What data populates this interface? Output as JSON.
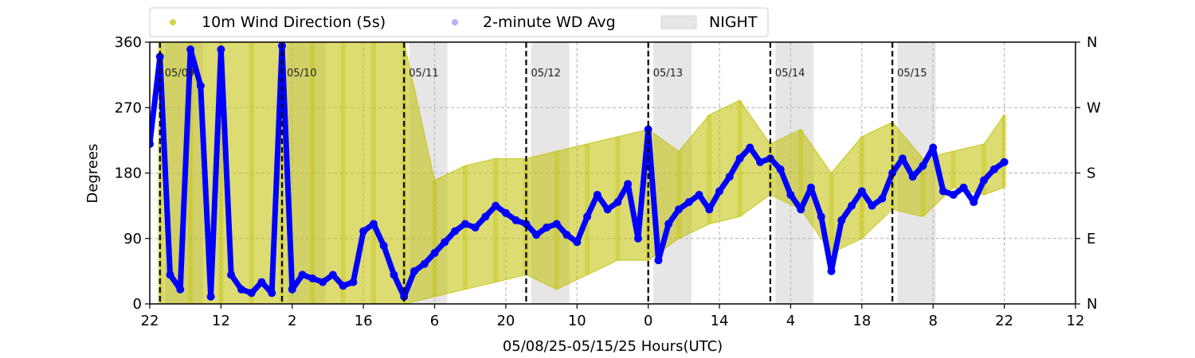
{
  "chart_data": {
    "type": "scatter",
    "xlabel": "05/08/25-05/15/25  Hours(UTC)",
    "ylabel": "Degrees",
    "ylim": [
      0,
      360
    ],
    "yticks": [
      0,
      90,
      180,
      270,
      360
    ],
    "x_axis_unit": "hours UTC",
    "x_range_start": "05/08/25 22:00",
    "x_range_end": "05/16/25 12:00",
    "xticks": [
      "22",
      "12",
      "2",
      "16",
      "6",
      "20",
      "10",
      "0",
      "14",
      "4",
      "18",
      "8",
      "22",
      "12"
    ],
    "right_axis_ticks": [
      {
        "deg": 0,
        "label": "N"
      },
      {
        "deg": 90,
        "label": "E"
      },
      {
        "deg": 180,
        "label": "S"
      },
      {
        "deg": 270,
        "label": "W"
      },
      {
        "deg": 360,
        "label": "N"
      }
    ],
    "grid": true,
    "legend_position": "top, above plot",
    "legend": [
      {
        "label": "10m Wind Direction (5s)",
        "kind": "marker",
        "color": "#bfbf00"
      },
      {
        "label": "2-minute WD Avg",
        "kind": "marker",
        "color": "#0000ff"
      },
      {
        "label": "NIGHT",
        "kind": "patch",
        "color": "#e6e6e6"
      }
    ],
    "day_boundaries": [
      {
        "time": "05/09 00:00",
        "label": "05/09"
      },
      {
        "time": "05/10 00:00",
        "label": "05/10"
      },
      {
        "time": "05/11 00:00",
        "label": "05/11"
      },
      {
        "time": "05/12 00:00",
        "label": "05/12"
      },
      {
        "time": "05/13 00:00",
        "label": "05/13"
      },
      {
        "time": "05/14 00:00",
        "label": "05/14"
      },
      {
        "time": "05/15 00:00",
        "label": "05/15"
      }
    ],
    "night_periods": [
      {
        "start": "05/09 01:00",
        "end": "05/09 08:30"
      },
      {
        "start": "05/10 01:00",
        "end": "05/10 08:30"
      },
      {
        "start": "05/11 01:00",
        "end": "05/11 08:30"
      },
      {
        "start": "05/12 01:00",
        "end": "05/12 08:30"
      },
      {
        "start": "05/13 01:00",
        "end": "05/13 08:30"
      },
      {
        "start": "05/14 01:00",
        "end": "05/14 08:30"
      },
      {
        "start": "05/15 01:00",
        "end": "05/15 08:30"
      }
    ],
    "series": [
      {
        "name": "2-minute WD Avg",
        "color": "#0000ff",
        "x": [
          "05/08 22:00",
          "05/09 00:00",
          "05/09 02:00",
          "05/09 04:00",
          "05/09 06:00",
          "05/09 08:00",
          "05/09 10:00",
          "05/09 12:00",
          "05/09 14:00",
          "05/09 16:00",
          "05/09 18:00",
          "05/09 20:00",
          "05/09 22:00",
          "05/10 00:00",
          "05/10 02:00",
          "05/10 04:00",
          "05/10 06:00",
          "05/10 08:00",
          "05/10 10:00",
          "05/10 12:00",
          "05/10 14:00",
          "05/10 16:00",
          "05/10 18:00",
          "05/10 20:00",
          "05/10 22:00",
          "05/11 00:00",
          "05/11 02:00",
          "05/11 04:00",
          "05/11 06:00",
          "05/11 08:00",
          "05/11 10:00",
          "05/11 12:00",
          "05/11 14:00",
          "05/11 16:00",
          "05/11 18:00",
          "05/11 20:00",
          "05/11 22:00",
          "05/12 00:00",
          "05/12 02:00",
          "05/12 04:00",
          "05/12 06:00",
          "05/12 08:00",
          "05/12 10:00",
          "05/12 12:00",
          "05/12 14:00",
          "05/12 16:00",
          "05/12 18:00",
          "05/12 20:00",
          "05/12 22:00",
          "05/13 00:00",
          "05/13 02:00",
          "05/13 04:00",
          "05/13 06:00",
          "05/13 08:00",
          "05/13 10:00",
          "05/13 12:00",
          "05/13 14:00",
          "05/13 16:00",
          "05/13 18:00",
          "05/13 20:00",
          "05/13 22:00",
          "05/14 00:00",
          "05/14 02:00",
          "05/14 04:00",
          "05/14 06:00",
          "05/14 08:00",
          "05/14 10:00",
          "05/14 12:00",
          "05/14 14:00",
          "05/14 16:00",
          "05/14 18:00",
          "05/14 20:00",
          "05/14 22:00",
          "05/15 00:00",
          "05/15 02:00",
          "05/15 04:00",
          "05/15 06:00",
          "05/15 08:00",
          "05/15 10:00",
          "05/15 12:00",
          "05/15 14:00",
          "05/15 16:00",
          "05/15 18:00",
          "05/15 20:00",
          "05/15 22:00"
        ],
        "y": [
          220,
          340,
          40,
          20,
          350,
          300,
          10,
          350,
          40,
          20,
          15,
          30,
          15,
          355,
          20,
          40,
          35,
          30,
          40,
          25,
          30,
          100,
          110,
          80,
          40,
          10,
          45,
          55,
          70,
          85,
          100,
          110,
          105,
          120,
          135,
          125,
          115,
          110,
          95,
          105,
          110,
          95,
          85,
          120,
          150,
          130,
          140,
          165,
          90,
          240,
          60,
          110,
          130,
          140,
          150,
          130,
          155,
          175,
          200,
          215,
          195,
          200,
          185,
          150,
          130,
          160,
          120,
          45,
          115,
          135,
          155,
          135,
          145,
          180,
          200,
          175,
          190,
          215,
          155,
          150,
          160,
          140,
          170,
          185,
          195
        ]
      },
      {
        "name": "10m Wind Direction (5s)",
        "color": "#bfbf00",
        "x": [
          "05/09 00:00",
          "05/09 06:00",
          "05/09 12:00",
          "05/09 18:00",
          "05/10 00:00",
          "05/10 06:00",
          "05/10 12:00",
          "05/10 18:00",
          "05/11 00:00",
          "05/11 06:00",
          "05/11 12:00",
          "05/11 18:00",
          "05/12 00:00",
          "05/12 06:00",
          "05/12 12:00",
          "05/12 18:00",
          "05/13 00:00",
          "05/13 06:00",
          "05/13 12:00",
          "05/13 18:00",
          "05/14 00:00",
          "05/14 06:00",
          "05/14 12:00",
          "05/14 18:00",
          "05/15 00:00",
          "05/15 06:00",
          "05/15 12:00",
          "05/15 18:00",
          "05/15 22:00"
        ],
        "y_low": [
          0,
          0,
          0,
          0,
          0,
          0,
          0,
          0,
          0,
          10,
          20,
          30,
          40,
          20,
          40,
          60,
          60,
          90,
          110,
          120,
          150,
          130,
          70,
          90,
          130,
          120,
          160,
          150,
          160
        ],
        "y_high": [
          360,
          360,
          360,
          360,
          360,
          360,
          360,
          360,
          360,
          170,
          190,
          200,
          200,
          210,
          220,
          230,
          240,
          210,
          260,
          280,
          220,
          240,
          180,
          230,
          250,
          200,
          210,
          220,
          260
        ]
      }
    ]
  }
}
